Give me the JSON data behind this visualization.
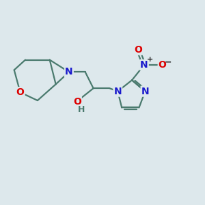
{
  "bg_color": "#dde8ec",
  "bond_color": "#4a7a6e",
  "bond_width": 1.6,
  "atom_colors": {
    "O": "#dd0000",
    "N": "#1a1acc",
    "H": "#4a7a6e"
  },
  "font_size_atom": 10,
  "font_size_charge": 8
}
